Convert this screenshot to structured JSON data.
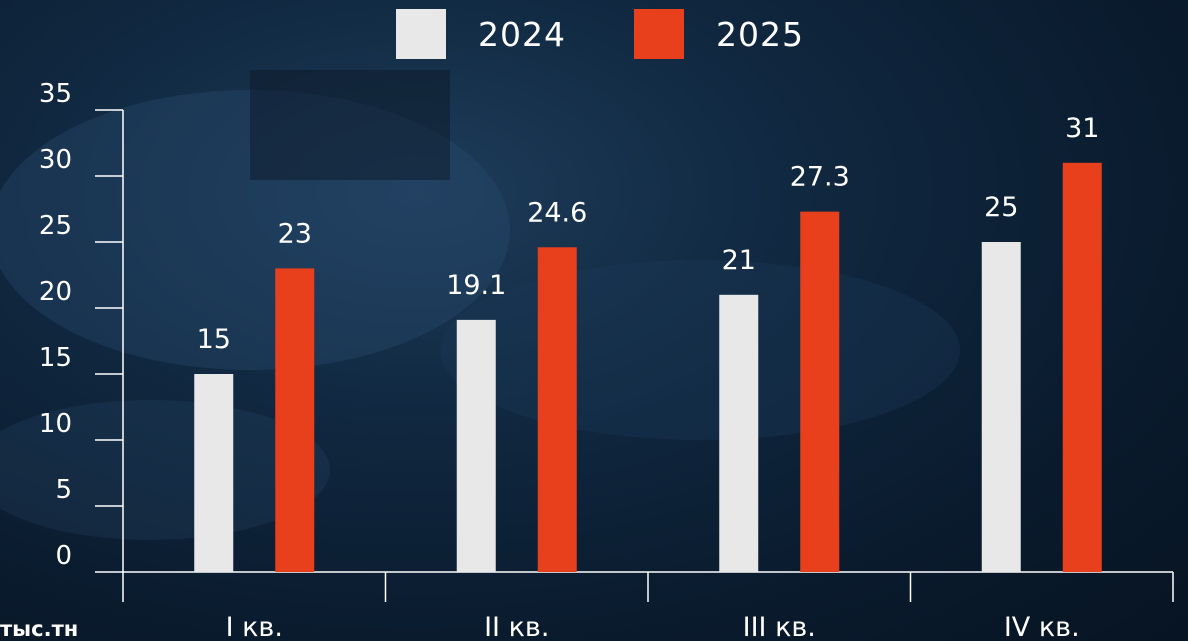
{
  "chart_data": {
    "type": "bar",
    "categories": [
      "I кв.",
      "II кв.",
      "III кв.",
      "IV кв."
    ],
    "series": [
      {
        "name": "2024",
        "values": [
          15,
          19.1,
          21,
          25
        ],
        "color": "#e8e8e8"
      },
      {
        "name": "2025",
        "values": [
          23,
          24.6,
          27.3,
          31
        ],
        "color": "#e8401c"
      }
    ],
    "value_labels": [
      [
        "15",
        "19.1",
        "21",
        "25"
      ],
      [
        "23",
        "24.6",
        "27.3",
        "31"
      ]
    ],
    "yticks": [
      "0",
      "5",
      "10",
      "15",
      "20",
      "25",
      "30",
      "35"
    ],
    "ylim": [
      0,
      35
    ],
    "ylabel": "тыс.тн",
    "legend_placement": "top-center",
    "grid": false
  }
}
